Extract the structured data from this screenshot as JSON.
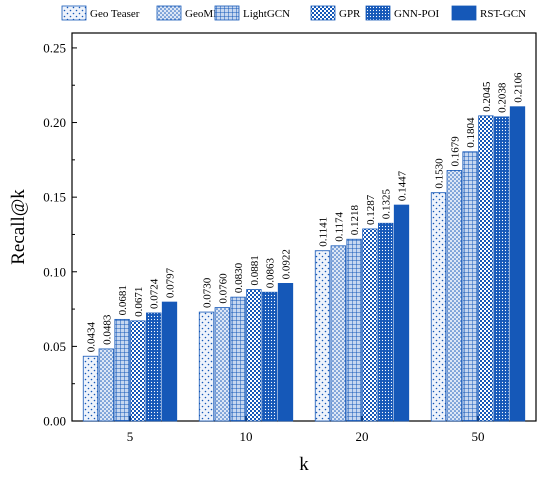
{
  "chart_data": {
    "type": "bar",
    "xlabel": "k",
    "ylabel": "Recall@k",
    "categories": [
      "5",
      "10",
      "20",
      "50"
    ],
    "ylim": [
      0,
      0.26
    ],
    "yticks": [
      "0.00",
      "0.05",
      "0.10",
      "0.15",
      "0.20",
      "0.25"
    ],
    "legend_position": "top",
    "grid": false,
    "series": [
      {
        "name": "Geo Teaser",
        "values": [
          0.0434,
          0.073,
          0.1141,
          0.153
        ],
        "labels": [
          "0.0434",
          "0.0730",
          "0.1141",
          "0.1530"
        ],
        "pattern": "sparse-dots",
        "color": "#e6eefa"
      },
      {
        "name": "GeoMF",
        "values": [
          0.0483,
          0.076,
          0.1174,
          0.1679
        ],
        "labels": [
          "0.0483",
          "0.0760",
          "0.1174",
          "0.1679"
        ],
        "pattern": "dots",
        "color": "#c9d8f0"
      },
      {
        "name": "LightGCN",
        "values": [
          0.0681,
          0.083,
          0.1218,
          0.1804
        ],
        "labels": [
          "0.0681",
          "0.0830",
          "0.1218",
          "0.1804"
        ],
        "pattern": "grid",
        "color": "#8fb0e0"
      },
      {
        "name": "GPR",
        "values": [
          0.0671,
          0.0881,
          0.1287,
          0.2045
        ],
        "labels": [
          "0.0671",
          "0.0881",
          "0.1287",
          "0.2045"
        ],
        "pattern": "checker",
        "color": "#5b8fd6"
      },
      {
        "name": "GNN-POI",
        "values": [
          0.0724,
          0.0863,
          0.1325,
          0.2038
        ],
        "labels": [
          "0.0724",
          "0.0863",
          "0.1325",
          "0.2038"
        ],
        "pattern": "dense-dots",
        "color": "#2a6cc4"
      },
      {
        "name": "RST-GCN",
        "values": [
          0.0797,
          0.0922,
          0.1447,
          0.2106
        ],
        "labels": [
          "0.0797",
          "0.0922",
          "0.1447",
          "0.2106"
        ],
        "pattern": "solid",
        "color": "#1558b8"
      }
    ]
  }
}
